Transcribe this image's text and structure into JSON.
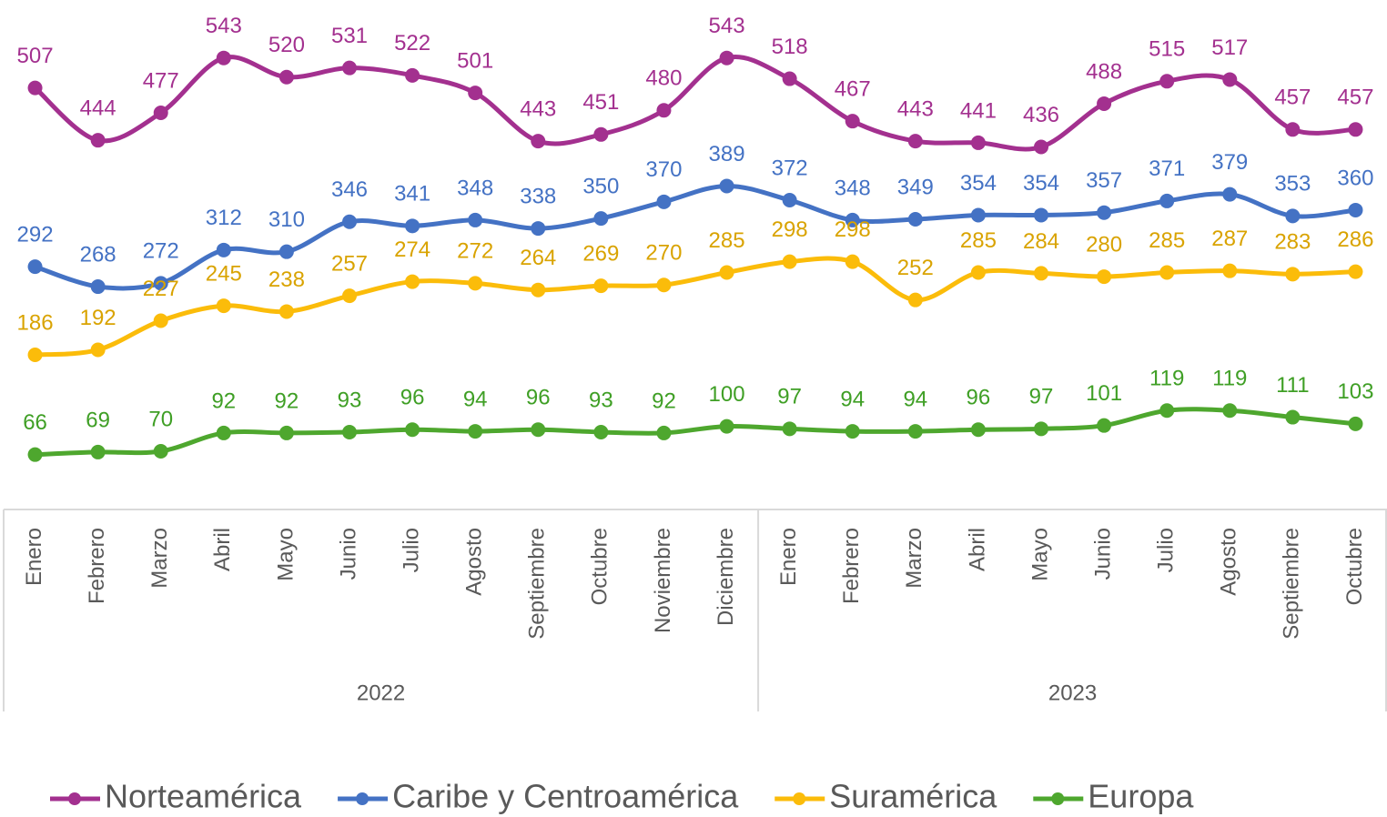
{
  "chart_data": {
    "type": "line",
    "category_groups": [
      {
        "label": "2022",
        "categories": [
          "Enero",
          "Febrero",
          "Marzo",
          "Abril",
          "Mayo",
          "Junio",
          "Julio",
          "Agosto",
          "Septiembre",
          "Octubre",
          "Noviembre",
          "Diciembre"
        ]
      },
      {
        "label": "2023",
        "categories": [
          "Enero",
          "Febrero",
          "Marzo",
          "Abril",
          "Mayo",
          "Junio",
          "Julio",
          "Agosto",
          "Septiembre",
          "Octubre"
        ]
      }
    ],
    "series": [
      {
        "name": "Norteamérica",
        "color": "#a3308f",
        "label_color": "#a3308f",
        "values": [
          507,
          444,
          477,
          543,
          520,
          531,
          522,
          501,
          443,
          451,
          480,
          543,
          518,
          467,
          443,
          441,
          436,
          488,
          515,
          517,
          457,
          457
        ]
      },
      {
        "name": "Caribe y Centroamérica",
        "color": "#4472c4",
        "label_color": "#4472c4",
        "values": [
          292,
          268,
          272,
          312,
          310,
          346,
          341,
          348,
          338,
          350,
          370,
          389,
          372,
          348,
          349,
          354,
          354,
          357,
          371,
          379,
          353,
          360
        ]
      },
      {
        "name": "Suramérica",
        "color": "#fbbc0a",
        "label_color": "#d9a300",
        "values": [
          186,
          192,
          227,
          245,
          238,
          257,
          274,
          272,
          264,
          269,
          270,
          285,
          298,
          298,
          252,
          285,
          284,
          280,
          285,
          287,
          283,
          286
        ]
      },
      {
        "name": "Europa",
        "color": "#4ea72e",
        "label_color": "#3f9f25",
        "values": [
          66,
          69,
          70,
          92,
          92,
          93,
          96,
          94,
          96,
          93,
          92,
          100,
          97,
          94,
          94,
          96,
          97,
          101,
          119,
          119,
          111,
          103
        ]
      }
    ],
    "ylim": [
      0,
      600
    ],
    "legend": "bottom"
  }
}
